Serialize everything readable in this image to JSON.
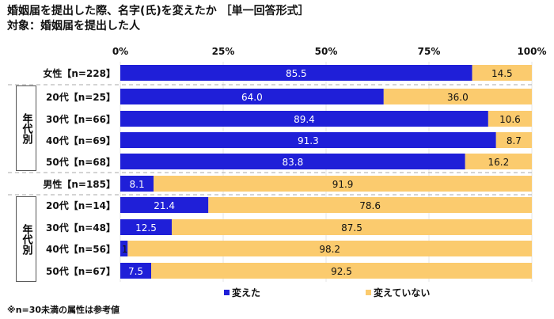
{
  "title": "婚姻届を提出した際、名字(氏)を変えたか ［単一回答形式］",
  "subtitle": "対象：婚姻届を提出した人",
  "footnote": "※n=30未満の属性は参考値",
  "group_label": "年代別",
  "chart_data": {
    "type": "bar",
    "orientation": "horizontal",
    "stacked": true,
    "xlim": [
      0,
      100
    ],
    "xticks": [
      "0%",
      "25%",
      "50%",
      "75%",
      "100%"
    ],
    "legend_position": "bottom",
    "categories": [
      "女性【n=228】",
      "20代【n=25】",
      "30代【n=66】",
      "40代【n=69】",
      "50代【n=68】",
      "男性【n=185】",
      "20代【n=14】",
      "30代【n=48】",
      "40代【n=56】",
      "50代【n=67】"
    ],
    "series": [
      {
        "name": "変えた",
        "color": "#1f1fd8",
        "values": [
          85.5,
          64.0,
          89.4,
          91.3,
          83.8,
          8.1,
          21.4,
          12.5,
          1.8,
          7.5
        ]
      },
      {
        "name": "変えていない",
        "color": "#fbcb6e",
        "values": [
          14.5,
          36.0,
          10.6,
          8.7,
          16.2,
          91.9,
          78.6,
          87.5,
          98.2,
          92.5
        ]
      }
    ]
  }
}
